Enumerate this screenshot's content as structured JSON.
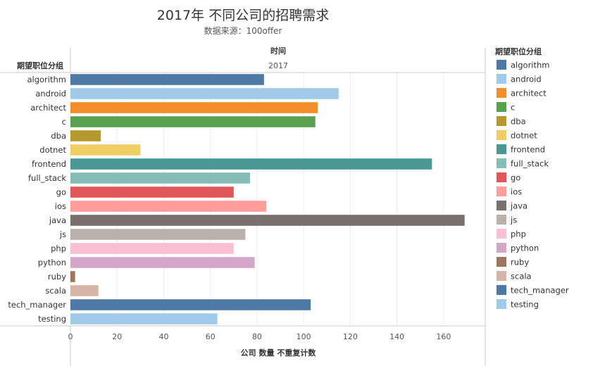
{
  "chart_data": {
    "type": "bar",
    "orientation": "horizontal",
    "title": "2017年 不同公司的招聘需求",
    "subtitle": "数据来源：100offer",
    "row_header": "期望职位分组",
    "column_header": "时间",
    "column_value": "2017",
    "xlabel": "公司 数量 不重复计数",
    "xlim": [
      0,
      170
    ],
    "xticks": [
      0,
      20,
      40,
      60,
      80,
      100,
      120,
      140,
      160
    ],
    "grid": true,
    "legend_title": "期望职位分组",
    "legend_position": "right",
    "categories": [
      "algorithm",
      "android",
      "architect",
      "c",
      "dba",
      "dotnet",
      "frontend",
      "full_stack",
      "go",
      "ios",
      "java",
      "js",
      "php",
      "python",
      "ruby",
      "scala",
      "tech_manager",
      "testing"
    ],
    "values": [
      83,
      115,
      106,
      105,
      13,
      30,
      155,
      77,
      70,
      84,
      169,
      75,
      70,
      79,
      2,
      12,
      103,
      63
    ],
    "colors": [
      "#4e79a7",
      "#a0cbe8",
      "#f28e2b",
      "#59a14f",
      "#b6992d",
      "#f1ce63",
      "#499894",
      "#86bcb6",
      "#e15759",
      "#ff9d9a",
      "#79706e",
      "#bab0ac",
      "#fabfd2",
      "#d4a6c8",
      "#9d7660",
      "#d7b5a6",
      "#4e79a7",
      "#a0cbe8"
    ]
  }
}
